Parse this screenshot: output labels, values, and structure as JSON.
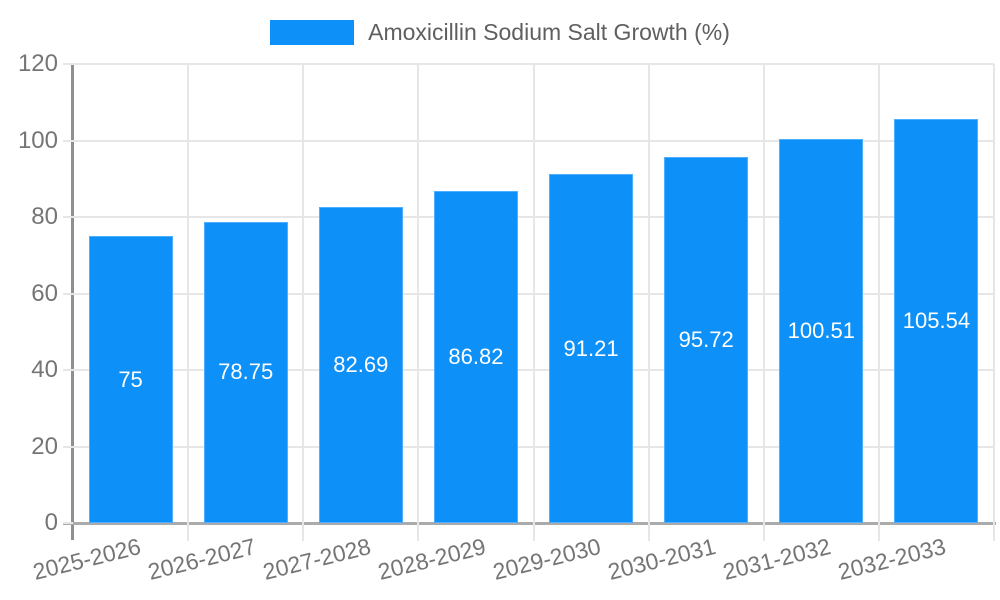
{
  "legend": {
    "label": "Amoxicillin Sodium Salt Growth (%)"
  },
  "colors": {
    "bar": "#0D90F8",
    "bar-border": "#4FAFFF",
    "grid": "#E6E6E6",
    "axis": "#ABABAB",
    "axis-y": "#8F8F8F",
    "tick-text": "#757575",
    "legend-text": "#5F5F5F",
    "value-text": "#FFFFFF",
    "background": "#FFFFFF"
  },
  "chart_data": {
    "type": "bar",
    "title": "",
    "series_name": "Amoxicillin Sodium Salt Growth (%)",
    "categories": [
      "2025-2026",
      "2026-2027",
      "2027-2028",
      "2028-2029",
      "2029-2030",
      "2030-2031",
      "2031-2032",
      "2032-2033"
    ],
    "values": [
      75,
      78.75,
      82.69,
      86.82,
      91.21,
      95.72,
      100.51,
      105.54
    ],
    "value_labels": [
      "75",
      "78.75",
      "82.69",
      "86.82",
      "91.21",
      "95.72",
      "100.51",
      "105.54"
    ],
    "xlabel": "",
    "ylabel": "",
    "ylim": [
      0,
      120
    ],
    "yticks": [
      0,
      20,
      40,
      60,
      80,
      100,
      120
    ],
    "grid": true,
    "legend_position": "top-center",
    "x_label_rotation_deg": -14,
    "value_label_position": "center-inside"
  }
}
